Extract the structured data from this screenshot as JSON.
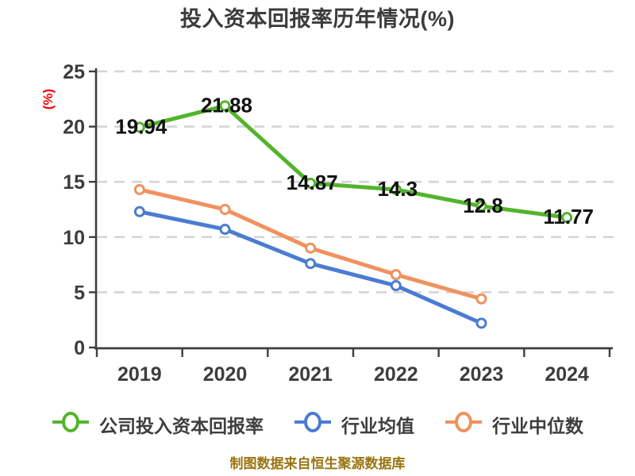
{
  "title": "投入资本回报率历年情况(%)",
  "y_axis_label": "(%)",
  "footer": "制图数据来自恒生聚源数据库",
  "colors": {
    "company": "#53b42c",
    "industry_avg": "#4b7cd2",
    "industry_median": "#f1915f",
    "grid": "#d5d5d5",
    "axis": "#3e3e3e",
    "tick_label": "#3d3d3d",
    "data_label": "#111111",
    "marker_fill": "#ffffff",
    "y_axis_label": "#fe0000",
    "footer": "#9a7411"
  },
  "chart_data": {
    "type": "line",
    "title": "投入资本回报率历年情况(%)",
    "ylabel": "(%)",
    "categories": [
      "2019",
      "2020",
      "2021",
      "2022",
      "2023",
      "2024"
    ],
    "ylim": [
      0,
      25
    ],
    "yticks": [
      0,
      5,
      10,
      15,
      20,
      25
    ],
    "grid": "horizontal-dashed",
    "legend_position": "bottom",
    "series": [
      {
        "name": "公司投入资本回报率",
        "color_key": "company",
        "values": [
          19.94,
          21.88,
          14.87,
          14.3,
          12.8,
          11.77
        ],
        "labels": [
          "19.94",
          "21.88",
          "14.87",
          "14.3",
          "12.8",
          "11.77"
        ]
      },
      {
        "name": "行业均值",
        "color_key": "industry_avg",
        "values": [
          12.3,
          10.7,
          7.6,
          5.6,
          2.2,
          null
        ],
        "labels": null
      },
      {
        "name": "行业中位数",
        "color_key": "industry_median",
        "values": [
          14.3,
          12.5,
          9.0,
          6.6,
          4.4,
          null
        ],
        "labels": null
      }
    ]
  }
}
